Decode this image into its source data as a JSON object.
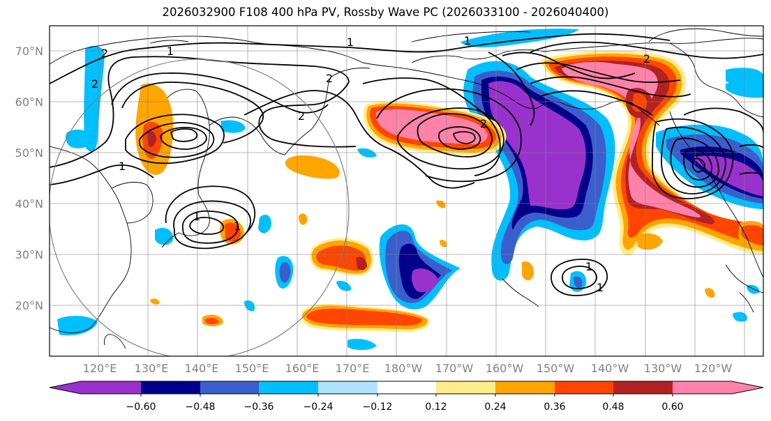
{
  "title": "2026032900 F108 400 hPa PV, Rossby Wave PC (2026033100 - 2026040400)",
  "lat_labels": [
    "70°N",
    "60°N",
    "50°N",
    "40°N",
    "30°N",
    "20°N"
  ],
  "lon_labels": [
    "120°E",
    "130°E",
    "140°E",
    "150°E",
    "160°E",
    "170°E",
    "180°W",
    "170°W",
    "160°W",
    "150°W",
    "140°W",
    "130°W",
    "120°W"
  ],
  "contour_labels": [
    "1",
    "2",
    "2",
    "1",
    "2",
    "1",
    "1",
    "2",
    "2",
    "1",
    "1",
    "2",
    "1",
    "1"
  ],
  "colorbar": {
    "ticks": [
      "−0.60",
      "−0.48",
      "−0.36",
      "−0.24",
      "−0.12",
      "0.12",
      "0.24",
      "0.36",
      "0.48",
      "0.60"
    ],
    "colors": [
      "#9932cc",
      "#00008b",
      "#3a5fcd",
      "#00bfff",
      "#b0e2ff",
      "#ffffff",
      "#ffec8b",
      "#ffa500",
      "#ff4500",
      "#b22222",
      "#ff82ab"
    ]
  }
}
